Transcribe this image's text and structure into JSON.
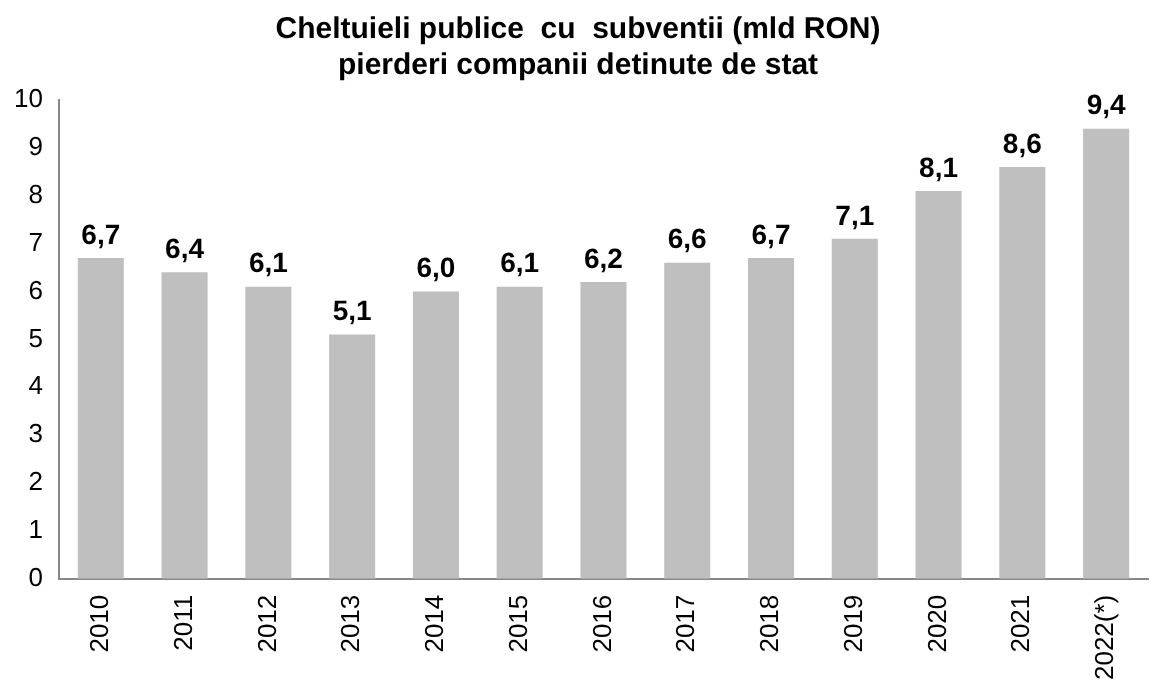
{
  "chart_data": {
    "type": "bar",
    "title": [
      "Cheltuieli publice  cu  subventii (mld RON)",
      "pierderi companii detinute de stat"
    ],
    "categories": [
      "2010",
      "2011",
      "2012",
      "2013",
      "2014",
      "2015",
      "2016",
      "2017",
      "2018",
      "2019",
      "2020",
      "2021",
      "2022(*)"
    ],
    "values": [
      6.7,
      6.4,
      6.1,
      5.1,
      6.0,
      6.1,
      6.2,
      6.6,
      6.7,
      7.1,
      8.1,
      8.6,
      9.4
    ],
    "value_labels": [
      "6,7",
      "6,4",
      "6,1",
      "5,1",
      "6,0",
      "6,1",
      "6,2",
      "6,6",
      "6,7",
      "7,1",
      "8,1",
      "8,6",
      "9,4"
    ],
    "color": "#bfbfbf",
    "ylim": [
      0,
      10
    ],
    "yticks": [
      0,
      1,
      2,
      3,
      4,
      5,
      6,
      7,
      8,
      9,
      10
    ],
    "grid": false,
    "legend": false
  }
}
